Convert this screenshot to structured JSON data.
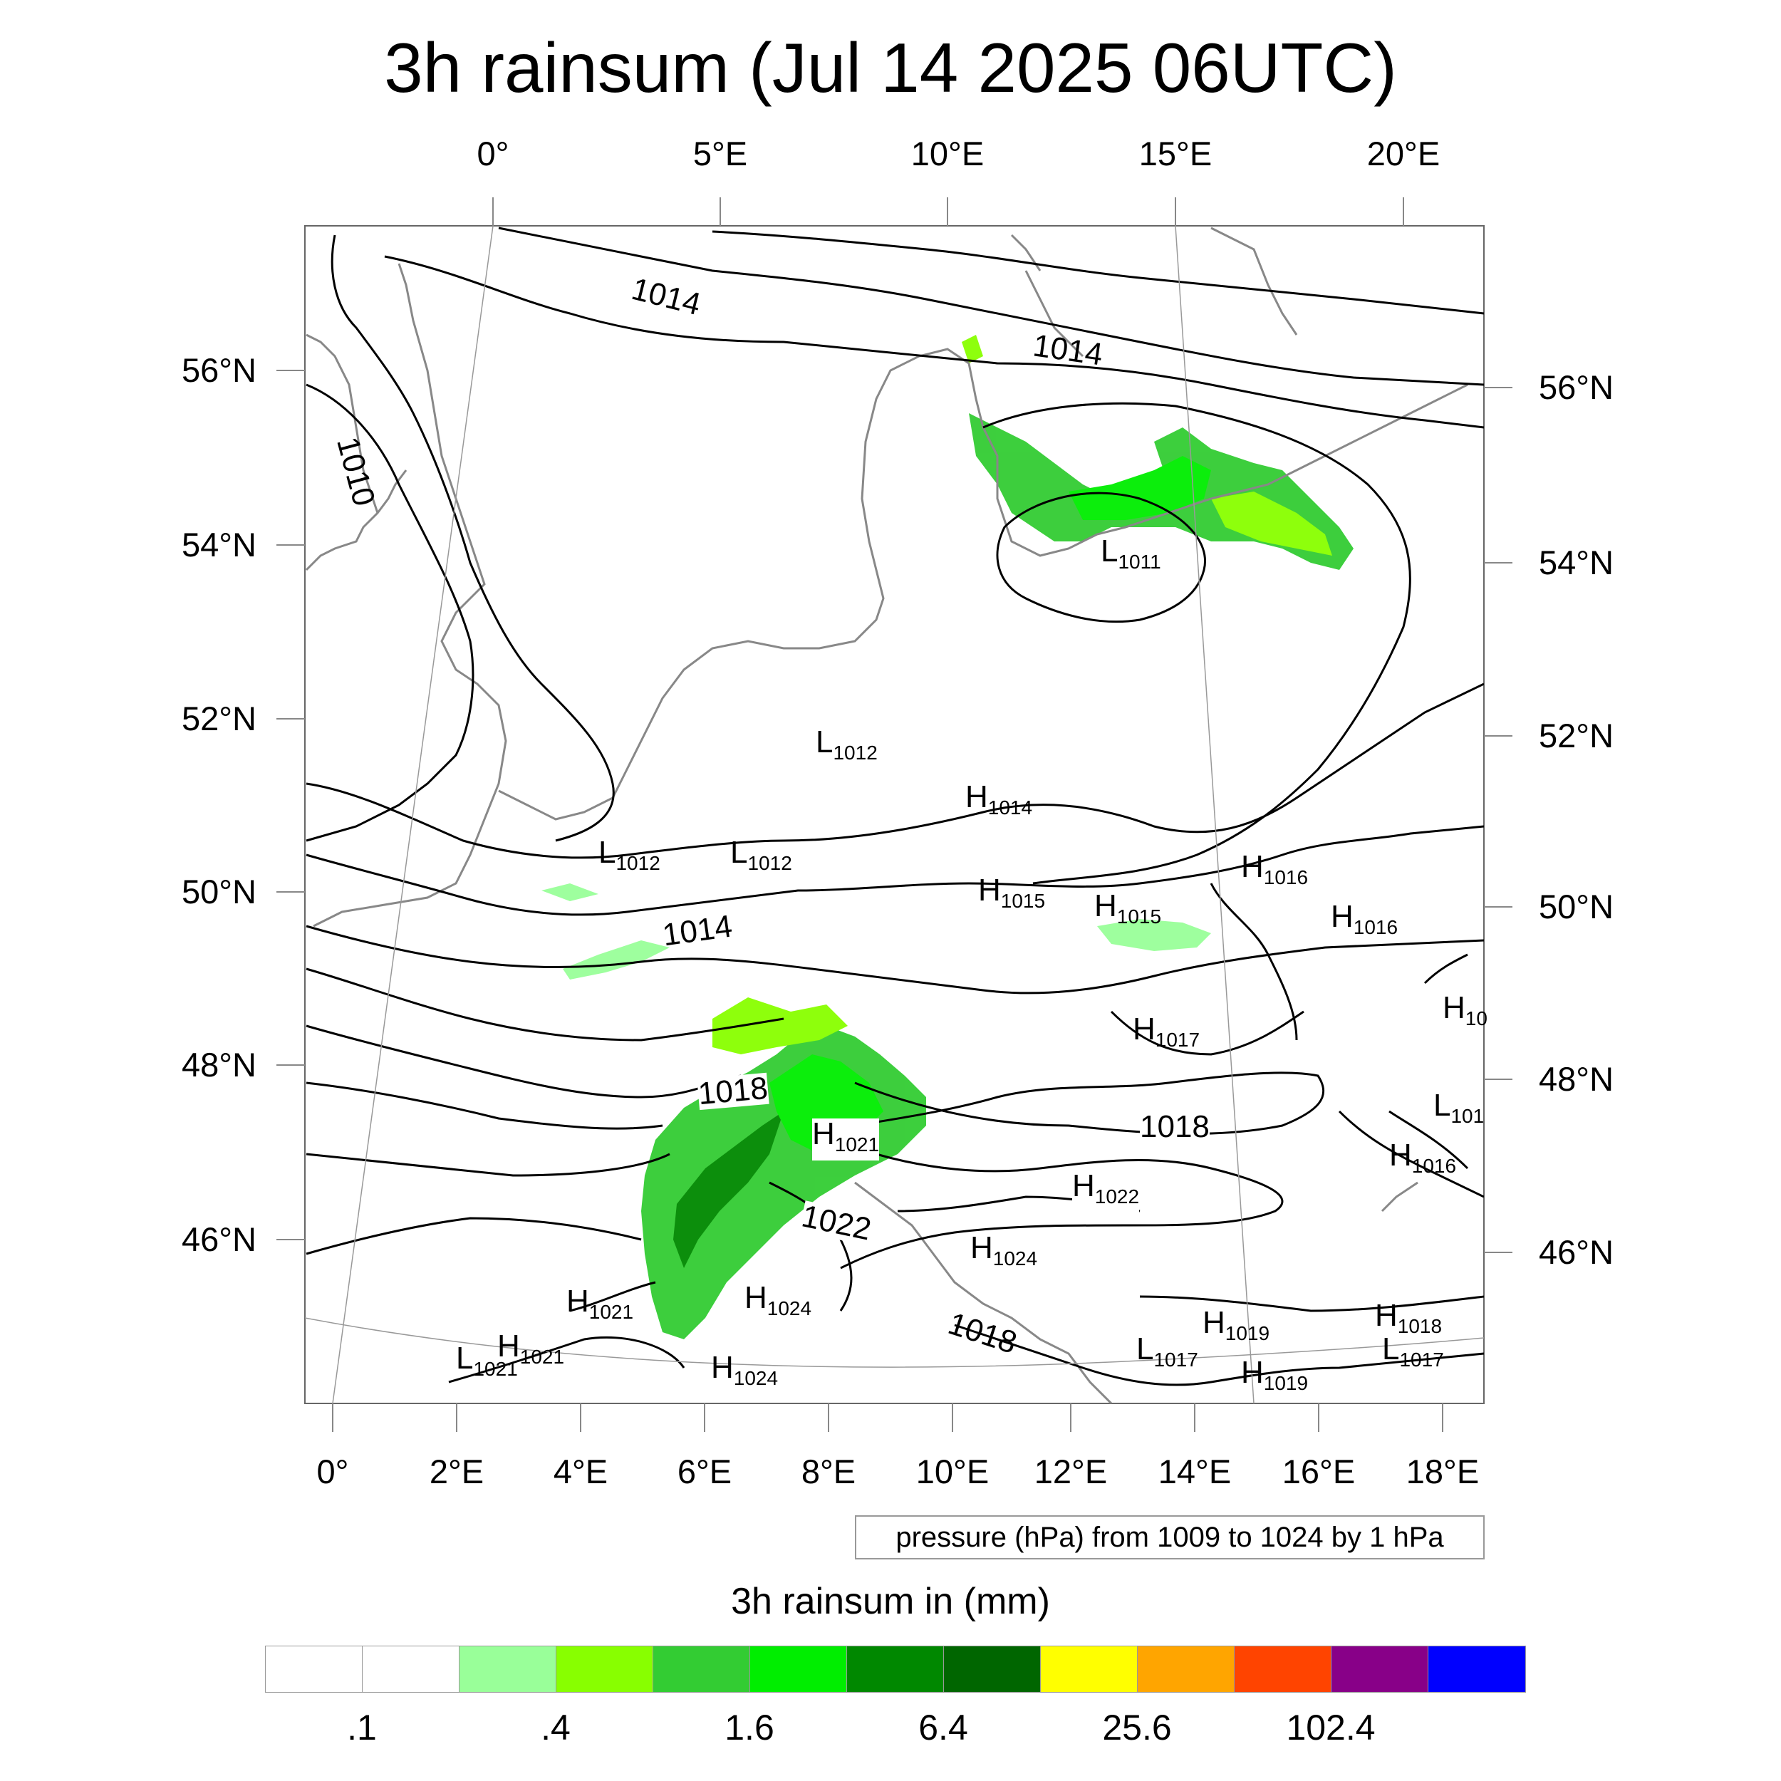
{
  "title": "3h rainsum (Jul 14 2025 06UTC)",
  "top_axis_labels": [
    "0°",
    "5°E",
    "10°E",
    "15°E",
    "20°E"
  ],
  "bottom_axis_labels": [
    "0°",
    "2°E",
    "4°E",
    "6°E",
    "8°E",
    "10°E",
    "12°E",
    "14°E",
    "16°E",
    "18°E"
  ],
  "left_axis_labels": [
    "56°N",
    "54°N",
    "52°N",
    "50°N",
    "48°N",
    "46°N"
  ],
  "right_axis_labels": [
    "56°N",
    "54°N",
    "52°N",
    "50°N",
    "48°N",
    "46°N"
  ],
  "contour_labels": [
    {
      "text": "1014"
    },
    {
      "text": "1014"
    },
    {
      "text": "1010"
    },
    {
      "text": "1014"
    },
    {
      "text": "1018"
    },
    {
      "text": "1018"
    },
    {
      "text": "1022"
    },
    {
      "text": "1018"
    }
  ],
  "pressure_centers": [
    {
      "letter": "L",
      "value": "1011"
    },
    {
      "letter": "L",
      "value": "1012"
    },
    {
      "letter": "H",
      "value": "1014"
    },
    {
      "letter": "L",
      "value": "1012"
    },
    {
      "letter": "L",
      "value": "1012"
    },
    {
      "letter": "H",
      "value": "1016"
    },
    {
      "letter": "H",
      "value": "1015"
    },
    {
      "letter": "H",
      "value": "1015"
    },
    {
      "letter": "H",
      "value": "1016"
    },
    {
      "letter": "H",
      "value": "10"
    },
    {
      "letter": "H",
      "value": "1017"
    },
    {
      "letter": "L",
      "value": "101"
    },
    {
      "letter": "H",
      "value": "1021"
    },
    {
      "letter": "H",
      "value": "1016"
    },
    {
      "letter": "H",
      "value": "1022"
    },
    {
      "letter": "H",
      "value": "1024"
    },
    {
      "letter": "H",
      "value": "1024"
    },
    {
      "letter": "H",
      "value": "1021"
    },
    {
      "letter": "H",
      "value": "1019"
    },
    {
      "letter": "H",
      "value": "1018"
    },
    {
      "letter": "L",
      "value": "1021"
    },
    {
      "letter": "H",
      "value": "1021"
    },
    {
      "letter": "L",
      "value": "1017"
    },
    {
      "letter": "L",
      "value": "1017"
    },
    {
      "letter": "H",
      "value": "1019"
    },
    {
      "letter": "H",
      "value": "1024"
    }
  ],
  "info_box": "pressure (hPa) from 1009 to 1024 by 1 hPa",
  "legend": {
    "title": "3h rainsum in (mm)",
    "colors": [
      "#ffffff",
      "#ffffff",
      "#99ff99",
      "#88ff00",
      "#33cc33",
      "#00ee00",
      "#008800",
      "#006600",
      "#ffff00",
      "#ffa500",
      "#ff4400",
      "#880088",
      "#0000ff"
    ],
    "labels": [
      ".1",
      ".4",
      "1.6",
      "6.4",
      "25.6",
      "102.4"
    ]
  }
}
